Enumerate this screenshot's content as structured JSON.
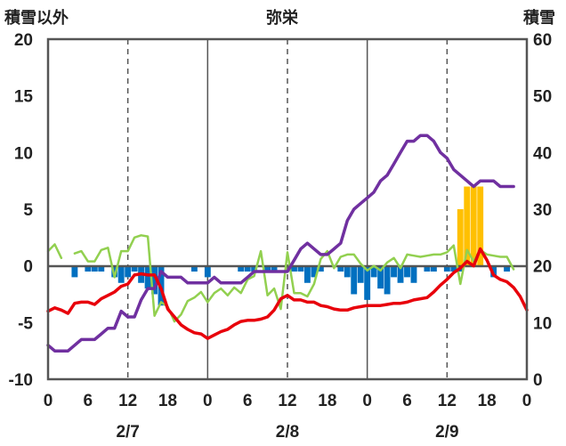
{
  "header": {
    "left_label": "積雪以外",
    "title": "弥栄",
    "right_label": "積雪"
  },
  "chart_data": {
    "type": "line",
    "title": "弥栄",
    "left_axis_label": "積雪以外",
    "right_axis_label": "積雪",
    "ylim_left": [
      -10,
      20
    ],
    "ylim_right": [
      0,
      60
    ],
    "y_ticks_left": [
      "20",
      "15",
      "10",
      "5",
      "0",
      "-5",
      "-10"
    ],
    "y_ticks_right": [
      "60",
      "50",
      "40",
      "30",
      "20",
      "10",
      "0"
    ],
    "x_range_hours": [
      0,
      72
    ],
    "x_tick_labels": [
      "0",
      "6",
      "12",
      "18",
      "0",
      "6",
      "12",
      "18",
      "0",
      "6",
      "12",
      "18",
      "0"
    ],
    "date_labels": [
      {
        "label": "2/7",
        "hour": 12
      },
      {
        "label": "2/8",
        "hour": 36
      },
      {
        "label": "2/9",
        "hour": 60
      }
    ],
    "grid": "dashed verticals at 12h, solid at midnight",
    "colors": {
      "red": "#e8000b",
      "purple": "#7030a0",
      "green": "#92d050",
      "blue": "#0070c0",
      "orange": "#ffc000"
    },
    "series": [
      {
        "color": "red",
        "axis": "left",
        "points": [
          [
            0,
            -4.0
          ],
          [
            1,
            -3.7
          ],
          [
            2,
            -3.9
          ],
          [
            3,
            -4.2
          ],
          [
            4,
            -3.3
          ],
          [
            5,
            -3.2
          ],
          [
            6,
            -3.2
          ],
          [
            7,
            -3.4
          ],
          [
            8,
            -2.9
          ],
          [
            9,
            -2.6
          ],
          [
            10,
            -2.3
          ],
          [
            11,
            -1.8
          ],
          [
            12,
            -1.6
          ],
          [
            13,
            -0.8
          ],
          [
            14,
            -0.7
          ],
          [
            15,
            -0.8
          ],
          [
            16,
            -0.8
          ],
          [
            17,
            -2.0
          ],
          [
            18,
            -3.8
          ],
          [
            19,
            -4.5
          ],
          [
            20,
            -5.2
          ],
          [
            21,
            -5.6
          ],
          [
            22,
            -5.9
          ],
          [
            23,
            -6.0
          ],
          [
            24,
            -6.4
          ],
          [
            25,
            -6.1
          ],
          [
            26,
            -5.8
          ],
          [
            27,
            -5.6
          ],
          [
            28,
            -5.2
          ],
          [
            29,
            -4.9
          ],
          [
            30,
            -4.8
          ],
          [
            31,
            -4.8
          ],
          [
            32,
            -4.7
          ],
          [
            33,
            -4.5
          ],
          [
            34,
            -3.9
          ],
          [
            35,
            -2.9
          ],
          [
            36,
            -2.6
          ],
          [
            37,
            -3.0
          ],
          [
            38,
            -3.0
          ],
          [
            39,
            -3.2
          ],
          [
            40,
            -3.2
          ],
          [
            41,
            -3.5
          ],
          [
            42,
            -3.6
          ],
          [
            43,
            -3.8
          ],
          [
            44,
            -3.9
          ],
          [
            45,
            -3.9
          ],
          [
            46,
            -3.7
          ],
          [
            47,
            -3.6
          ],
          [
            48,
            -3.5
          ],
          [
            49,
            -3.5
          ],
          [
            50,
            -3.5
          ],
          [
            51,
            -3.4
          ],
          [
            52,
            -3.3
          ],
          [
            53,
            -3.3
          ],
          [
            54,
            -3.2
          ],
          [
            55,
            -3.0
          ],
          [
            56,
            -2.9
          ],
          [
            57,
            -2.8
          ],
          [
            58,
            -2.3
          ],
          [
            59,
            -1.7
          ],
          [
            60,
            -1.2
          ],
          [
            61,
            -0.6
          ],
          [
            62,
            -0.2
          ],
          [
            63,
            0.4
          ],
          [
            64,
            0.0
          ],
          [
            65,
            1.5
          ],
          [
            66,
            0.5
          ],
          [
            67,
            -0.8
          ],
          [
            68,
            -1.2
          ],
          [
            69,
            -1.4
          ],
          [
            70,
            -1.9
          ],
          [
            71,
            -2.7
          ],
          [
            72,
            -3.9
          ]
        ]
      },
      {
        "color": "purple",
        "axis": "left",
        "points": [
          [
            0,
            -7.0
          ],
          [
            1,
            -7.5
          ],
          [
            2,
            -7.5
          ],
          [
            3,
            -7.5
          ],
          [
            4,
            -7.0
          ],
          [
            5,
            -6.5
          ],
          [
            6,
            -6.5
          ],
          [
            7,
            -6.5
          ],
          [
            8,
            -6.0
          ],
          [
            9,
            -5.5
          ],
          [
            10,
            -5.5
          ],
          [
            11,
            -4.0
          ],
          [
            12,
            -4.5
          ],
          [
            13,
            -4.5
          ],
          [
            14,
            -3.0
          ],
          [
            15,
            -2.0
          ],
          [
            16,
            -2.0
          ],
          [
            17,
            -0.5
          ],
          [
            18,
            -1.0
          ],
          [
            19,
            -1.0
          ],
          [
            20,
            -1.0
          ],
          [
            21,
            -1.5
          ],
          [
            22,
            -1.5
          ],
          [
            23,
            -1.5
          ],
          [
            24,
            -1.5
          ],
          [
            25,
            -1.0
          ],
          [
            26,
            -1.5
          ],
          [
            27,
            -1.5
          ],
          [
            28,
            -1.5
          ],
          [
            29,
            -1.5
          ],
          [
            30,
            -1.0
          ],
          [
            31,
            -0.5
          ],
          [
            32,
            -0.5
          ],
          [
            33,
            -0.5
          ],
          [
            34,
            -0.5
          ],
          [
            35,
            -0.5
          ],
          [
            36,
            -0.5
          ],
          [
            37,
            0.5
          ],
          [
            38,
            1.5
          ],
          [
            39,
            2.0
          ],
          [
            40,
            1.5
          ],
          [
            41,
            1.0
          ],
          [
            42,
            1.0
          ],
          [
            43,
            1.5
          ],
          [
            44,
            2.0
          ],
          [
            45,
            4.0
          ],
          [
            46,
            5.0
          ],
          [
            47,
            5.5
          ],
          [
            48,
            6.0
          ],
          [
            49,
            6.5
          ],
          [
            50,
            7.5
          ],
          [
            51,
            8.0
          ],
          [
            52,
            9.0
          ],
          [
            53,
            10.0
          ],
          [
            54,
            11.0
          ],
          [
            55,
            11.0
          ],
          [
            56,
            11.5
          ],
          [
            57,
            11.5
          ],
          [
            58,
            11.0
          ],
          [
            59,
            10.0
          ],
          [
            60,
            9.5
          ],
          [
            61,
            8.5
          ],
          [
            62,
            8.0
          ],
          [
            63,
            7.5
          ],
          [
            64,
            7.0
          ],
          [
            65,
            7.5
          ],
          [
            66,
            7.5
          ],
          [
            67,
            7.5
          ],
          [
            68,
            7.0
          ],
          [
            69,
            7.0
          ],
          [
            70,
            7.0
          ]
        ]
      },
      {
        "color": "green",
        "axis": "left",
        "segments": [
          [
            [
              0,
              1.3
            ],
            [
              1,
              1.9
            ],
            [
              2,
              0.7
            ]
          ],
          [
            [
              4,
              1.1
            ],
            [
              5,
              1.3
            ],
            [
              6,
              0.4
            ],
            [
              7,
              0.4
            ],
            [
              8,
              1.4
            ],
            [
              9,
              1.6
            ],
            [
              10,
              -1.0
            ],
            [
              11,
              1.3
            ],
            [
              12,
              1.3
            ],
            [
              13,
              2.5
            ],
            [
              14,
              2.7
            ],
            [
              15,
              2.6
            ],
            [
              16,
              -4.4
            ],
            [
              17,
              -3.2
            ],
            [
              18,
              -3.6
            ],
            [
              19,
              -4.9
            ],
            [
              20,
              -4.3
            ],
            [
              21,
              -3.1
            ],
            [
              22,
              -2.8
            ],
            [
              23,
              -2.3
            ],
            [
              24,
              -3.2
            ],
            [
              25,
              -2.4
            ],
            [
              26,
              -2.0
            ],
            [
              27,
              -2.6
            ],
            [
              28,
              -1.9
            ],
            [
              29,
              -2.4
            ],
            [
              30,
              -1.2
            ],
            [
              31,
              -0.9
            ],
            [
              32,
              1.3
            ],
            [
              33,
              -2.6
            ],
            [
              34,
              -2.0
            ],
            [
              35,
              -3.8
            ],
            [
              36,
              1.2
            ],
            [
              37,
              -2.4
            ],
            [
              38,
              -2.4
            ],
            [
              39,
              -2.7
            ],
            [
              40,
              -1.6
            ],
            [
              41,
              0.6
            ],
            [
              42,
              1.3
            ],
            [
              43,
              -0.2
            ],
            [
              44,
              0.8
            ],
            [
              45,
              1.0
            ],
            [
              46,
              1.0
            ],
            [
              47,
              0.2
            ],
            [
              48,
              -0.4
            ],
            [
              49,
              0.0
            ],
            [
              50,
              -0.4
            ],
            [
              51,
              0.3
            ],
            [
              52,
              0.7
            ],
            [
              53,
              -0.2
            ],
            [
              54,
              1.0
            ],
            [
              55,
              0.9
            ],
            [
              56,
              0.8
            ],
            [
              57,
              0.9
            ],
            [
              58,
              1.0
            ],
            [
              59,
              1.0
            ],
            [
              60,
              1.2
            ],
            [
              61,
              1.8
            ],
            [
              62,
              -1.6
            ],
            [
              63,
              1.4
            ],
            [
              64,
              0.4
            ],
            [
              65,
              1.4
            ],
            [
              66,
              1.0
            ],
            [
              67,
              0.9
            ],
            [
              68,
              0.8
            ],
            [
              69,
              0.8
            ],
            [
              70,
              -0.3
            ]
          ]
        ]
      }
    ],
    "bars_blue": {
      "color": "blue",
      "axis": "left",
      "values": [
        [
          4,
          -1.0
        ],
        [
          6,
          -0.5
        ],
        [
          7,
          -0.5
        ],
        [
          8,
          -0.5
        ],
        [
          10,
          -1.0
        ],
        [
          11,
          -1.5
        ],
        [
          12,
          -1.0
        ],
        [
          13,
          -0.5
        ],
        [
          14,
          -1.5
        ],
        [
          15,
          -2.0
        ],
        [
          16,
          -2.5
        ],
        [
          17,
          -3.5
        ],
        [
          22,
          -0.5
        ],
        [
          24,
          -1.0
        ],
        [
          29,
          -0.5
        ],
        [
          30,
          -0.5
        ],
        [
          31,
          -0.5
        ],
        [
          33,
          -0.5
        ],
        [
          34,
          -0.5
        ],
        [
          37,
          -0.5
        ],
        [
          38,
          -0.5
        ],
        [
          39,
          -1.5
        ],
        [
          40,
          -1.0
        ],
        [
          41,
          -0.5
        ],
        [
          44,
          -0.5
        ],
        [
          45,
          -1.0
        ],
        [
          46,
          -2.5
        ],
        [
          47,
          -1.5
        ],
        [
          48,
          -3.0
        ],
        [
          49,
          -1.0
        ],
        [
          50,
          -2.0
        ],
        [
          51,
          -2.5
        ],
        [
          52,
          -1.0
        ],
        [
          53,
          -1.5
        ],
        [
          54,
          -1.0
        ],
        [
          55,
          -1.5
        ],
        [
          57,
          -0.5
        ],
        [
          58,
          -0.5
        ],
        [
          60,
          -0.5
        ],
        [
          61,
          -0.5
        ],
        [
          62,
          -0.5
        ],
        [
          67,
          -1.0
        ],
        [
          69,
          -0.5
        ]
      ]
    },
    "bars_orange": {
      "color": "orange",
      "axis": "right",
      "values": [
        [
          62,
          30
        ],
        [
          63,
          34
        ],
        [
          64,
          34
        ],
        [
          65,
          34
        ]
      ]
    }
  }
}
